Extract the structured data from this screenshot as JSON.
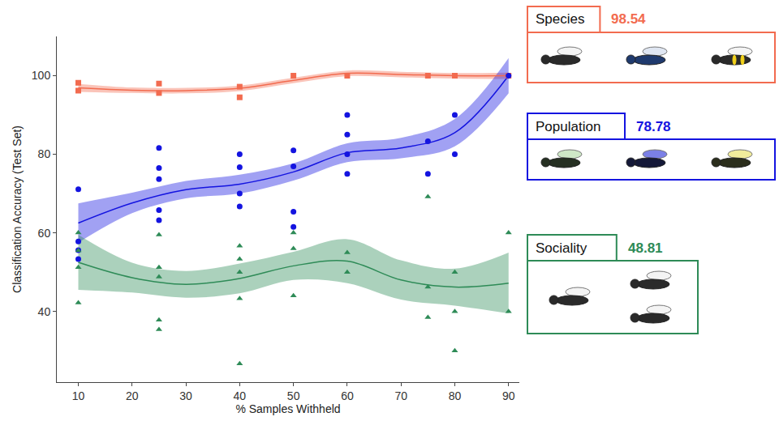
{
  "chart_data": {
    "type": "scatter",
    "x_label": "% Samples Withheld",
    "y_label": "Classification Accuracy (Test Set)",
    "xlim": [
      6,
      92
    ],
    "ylim": [
      22,
      110
    ],
    "xticks": [
      10,
      20,
      30,
      40,
      50,
      60,
      70,
      80,
      90
    ],
    "yticks": [
      40,
      60,
      80,
      100
    ],
    "grid": false,
    "series": [
      {
        "name": "Species",
        "color": "#f26b4f",
        "marker": "square",
        "overall_accuracy": 98.54,
        "x": [
          10,
          10,
          25,
          25,
          40,
          40,
          50,
          60,
          75,
          80,
          90
        ],
        "values": [
          98.2,
          96.2,
          98.0,
          95.6,
          97.2,
          94.5,
          100,
          100,
          100,
          100,
          100
        ],
        "fit": {
          "x": [
            10,
            20,
            30,
            40,
            50,
            60,
            70,
            80,
            90
          ],
          "values": [
            96.9,
            96.3,
            96.2,
            96.8,
            98.8,
            100.6,
            100.3,
            100,
            100
          ],
          "lower": [
            95.9,
            95.6,
            95.5,
            96.1,
            98.1,
            99.9,
            99.6,
            99.3,
            99.2
          ],
          "upper": [
            97.9,
            97.0,
            96.9,
            97.5,
            99.5,
            101.3,
            101.0,
            100.7,
            100.8
          ]
        }
      },
      {
        "name": "Population",
        "color": "#1414e0",
        "marker": "circle",
        "overall_accuracy": 78.78,
        "x": [
          10,
          10,
          10,
          10,
          25,
          25,
          25,
          25,
          25,
          40,
          40,
          40,
          40,
          50,
          50,
          50,
          50,
          60,
          60,
          60,
          60,
          75,
          75,
          80,
          80,
          90
        ],
        "values": [
          71.1,
          57.8,
          55.6,
          53.3,
          81.6,
          76.5,
          73.7,
          65.8,
          63.2,
          80.0,
          76.7,
          70.0,
          66.7,
          81.0,
          76.9,
          65.4,
          61.5,
          90.0,
          85.0,
          80.0,
          75.0,
          83.3,
          75.0,
          90.0,
          80.0,
          100
        ],
        "fit": {
          "x": [
            10,
            20,
            30,
            40,
            50,
            60,
            70,
            80,
            90
          ],
          "values": [
            62.5,
            67.6,
            71.0,
            72.4,
            75.5,
            80.4,
            81.6,
            85.5,
            100
          ],
          "lower": [
            57.5,
            65.0,
            68.8,
            70.0,
            73.3,
            78.0,
            79.0,
            82.0,
            95.5
          ],
          "upper": [
            67.5,
            70.2,
            73.2,
            74.8,
            77.7,
            82.8,
            84.2,
            89.0,
            104.5
          ]
        }
      },
      {
        "name": "Sociality",
        "color": "#2e8b57",
        "marker": "triangle",
        "overall_accuracy": 48.81,
        "x": [
          10,
          10,
          10,
          10,
          25,
          25,
          25,
          25,
          25,
          40,
          40,
          40,
          40,
          40,
          50,
          50,
          50,
          60,
          60,
          75,
          75,
          75,
          80,
          80,
          80,
          90,
          90
        ],
        "values": [
          60.0,
          55.5,
          51.2,
          42.2,
          59.5,
          51.2,
          48.8,
          37.8,
          35.4,
          56.7,
          53.3,
          50.0,
          43.3,
          26.7,
          60.0,
          56.0,
          44.0,
          55.0,
          50.0,
          69.2,
          46.2,
          38.5,
          50.0,
          40.0,
          30.0,
          60.0,
          40.0
        ],
        "fit": {
          "x": [
            10,
            20,
            30,
            40,
            50,
            60,
            70,
            80,
            90
          ],
          "values": [
            52.5,
            48.6,
            46.9,
            48.4,
            51.6,
            52.8,
            48.0,
            46.2,
            47.2
          ],
          "lower": [
            45.5,
            44.8,
            43.5,
            44.6,
            48.0,
            47.2,
            43.0,
            41.5,
            39.5
          ],
          "upper": [
            59.5,
            52.4,
            50.3,
            52.2,
            55.2,
            58.4,
            53.0,
            50.9,
            55.0
          ]
        }
      }
    ]
  }
}
